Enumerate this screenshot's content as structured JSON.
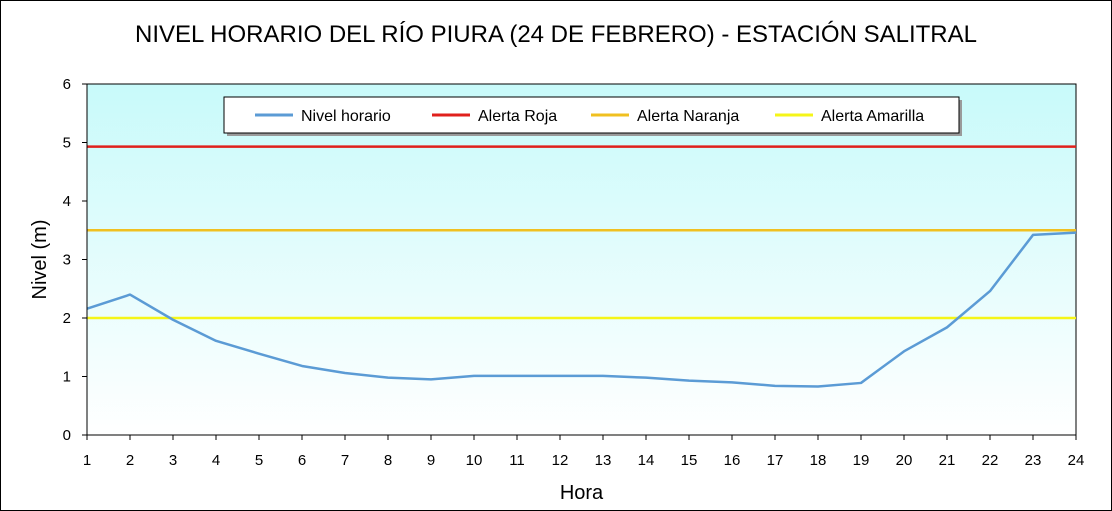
{
  "chart_data": {
    "type": "line",
    "title": "NIVEL HORARIO DEL RÍO PIURA (24 DE FEBRERO) - ESTACIÓN SALITRAL",
    "xlabel": "Hora",
    "ylabel": "Nivel (m)",
    "x": [
      1,
      2,
      3,
      4,
      5,
      6,
      7,
      8,
      9,
      10,
      11,
      12,
      13,
      14,
      15,
      16,
      17,
      18,
      19,
      20,
      21,
      22,
      23,
      24
    ],
    "xlim": [
      1,
      24
    ],
    "ylim": [
      0,
      6
    ],
    "yticks": [
      0,
      1,
      2,
      3,
      4,
      5,
      6
    ],
    "grid": false,
    "legend_position": "top",
    "series": [
      {
        "name": "Nivel horario",
        "color": "#5b9bd5",
        "values": [
          2.16,
          2.4,
          1.97,
          1.61,
          1.39,
          1.18,
          1.06,
          0.98,
          0.95,
          1.01,
          1.01,
          1.01,
          1.01,
          0.98,
          0.93,
          0.9,
          0.84,
          0.83,
          0.89,
          1.43,
          1.84,
          2.46,
          3.42,
          3.46
        ]
      },
      {
        "name": "Alerta Roja",
        "color": "#e0201c",
        "values": [
          4.93,
          4.93,
          4.93,
          4.93,
          4.93,
          4.93,
          4.93,
          4.93,
          4.93,
          4.93,
          4.93,
          4.93,
          4.93,
          4.93,
          4.93,
          4.93,
          4.93,
          4.93,
          4.93,
          4.93,
          4.93,
          4.93,
          4.93,
          4.93
        ]
      },
      {
        "name": "Alerta Naranja",
        "color": "#f0c020",
        "values": [
          3.5,
          3.5,
          3.5,
          3.5,
          3.5,
          3.5,
          3.5,
          3.5,
          3.5,
          3.5,
          3.5,
          3.5,
          3.5,
          3.5,
          3.5,
          3.5,
          3.5,
          3.5,
          3.5,
          3.5,
          3.5,
          3.5,
          3.5,
          3.5
        ]
      },
      {
        "name": "Alerta Amarilla",
        "color": "#f5f518",
        "values": [
          2.0,
          2.0,
          2.0,
          2.0,
          2.0,
          2.0,
          2.0,
          2.0,
          2.0,
          2.0,
          2.0,
          2.0,
          2.0,
          2.0,
          2.0,
          2.0,
          2.0,
          2.0,
          2.0,
          2.0,
          2.0,
          2.0,
          2.0,
          2.0
        ]
      }
    ],
    "plot_background": {
      "top_color": "#c8fafa",
      "bottom_color": "#ffffff"
    }
  }
}
